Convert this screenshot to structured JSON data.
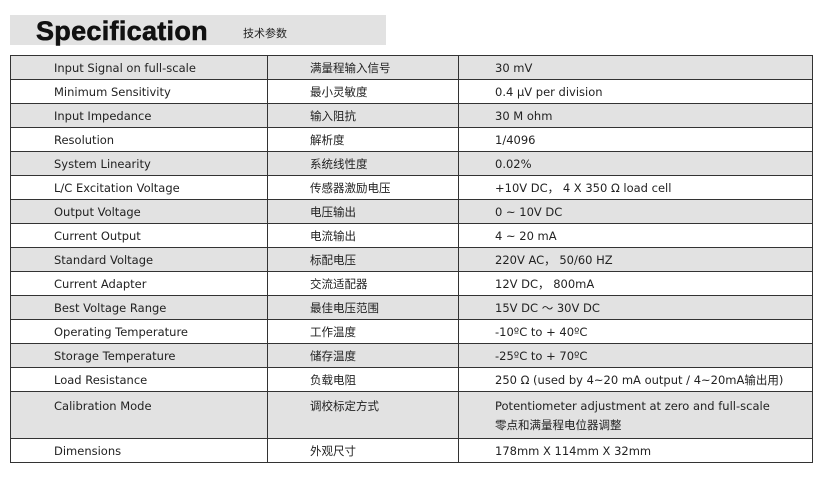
{
  "header": {
    "title": "Specification",
    "subtitle": "技术参数"
  },
  "rows": [
    {
      "en": "Input Signal on full-scale",
      "zh": "满量程输入信号",
      "value": "30 mV"
    },
    {
      "en": "Minimum Sensitivity",
      "zh": "最小灵敏度",
      "value": "0.4 μV per division"
    },
    {
      "en": "Input Impedance",
      "zh": "输入阻抗",
      "value": "30 M ohm"
    },
    {
      "en": "Resolution",
      "zh": "解析度",
      "value": "1/4096"
    },
    {
      "en": "System Linearity",
      "zh": "系统线性度",
      "value": "0.02%"
    },
    {
      "en": "L/C Excitation Voltage",
      "zh": "传感器激励电压",
      "value": "+10V DC， 4 X 350 Ω load cell"
    },
    {
      "en": "Output Voltage",
      "zh": "电压输出",
      "value": "0 ~ 10V DC"
    },
    {
      "en": "Current Output",
      "zh": "电流输出",
      "value": "4 ~ 20 mA"
    },
    {
      "en": "Standard Voltage",
      "zh": "标配电压",
      "value": "220V AC， 50/60 HZ"
    },
    {
      "en": "Current Adapter",
      "zh": "交流适配器",
      "value": "12V DC， 800mA"
    },
    {
      "en": "Best Voltage Range",
      "zh": "最佳电压范围",
      "value": "15V DC ～ 30V DC"
    },
    {
      "en": "Operating Temperature",
      "zh": "工作温度",
      "value": "-10ºC to + 40ºC"
    },
    {
      "en": "Storage Temperature",
      "zh": "储存温度",
      "value": "-25ºC to + 70ºC"
    },
    {
      "en": "Load Resistance",
      "zh": "负载电阻",
      "value": "250 Ω (used by 4~20 mA output / 4~20mA输出用)"
    },
    {
      "en": "Calibration Mode",
      "zh": "调校标定方式",
      "value": "Potentiometer adjustment at zero and full-scale",
      "value2": "零点和满量程电位器调整"
    },
    {
      "en": "Dimensions",
      "zh": "外观尺寸",
      "value": "178mm X 114mm X 32mm"
    }
  ]
}
